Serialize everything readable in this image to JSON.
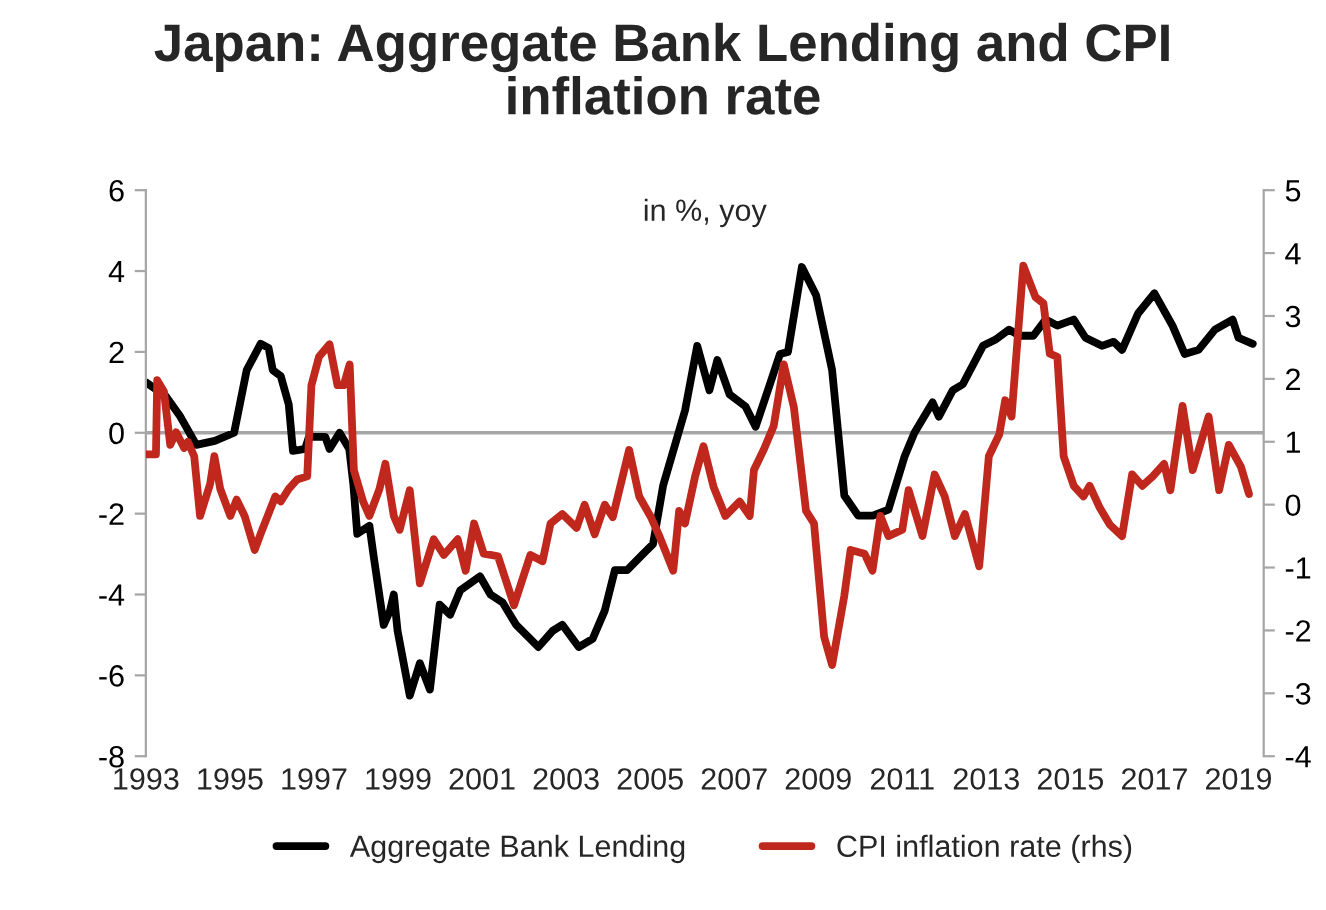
{
  "chart_data": {
    "type": "line",
    "title": "Japan: Aggregate Bank Lending and CPI\ninflation rate",
    "subtitle": "in %, yoy",
    "xlim": [
      1993,
      2019.6
    ],
    "xticks": [
      1993,
      1995,
      1997,
      1999,
      2001,
      2003,
      2005,
      2007,
      2009,
      2011,
      2013,
      2015,
      2017,
      2019
    ],
    "ylim": [
      -8,
      6
    ],
    "yticks": [
      -8,
      -6,
      -4,
      -2,
      0,
      2,
      4,
      6
    ],
    "y2lim": [
      -4,
      5
    ],
    "y2ticks": [
      -4,
      -3,
      -2,
      -1,
      0,
      1,
      2,
      3,
      4,
      5
    ],
    "grid": false,
    "legend": "bottom",
    "line_style": "solid",
    "marker": "none",
    "ref_lines": [
      {
        "axis": "y",
        "value": 0,
        "color": "#a6a6a6"
      }
    ],
    "series": [
      {
        "name": "Aggregate Bank Lending",
        "color": "#000000",
        "x": [
          1993.0,
          1993.48,
          1993.82,
          1994.2,
          1994.64,
          1995.1,
          1995.4,
          1995.73,
          1995.92,
          1996.02,
          1996.21,
          1996.4,
          1996.5,
          1996.79,
          1996.88,
          1997.27,
          1997.37,
          1997.61,
          1997.84,
          1997.94,
          1998.03,
          1998.32,
          1998.42,
          1998.66,
          1998.81,
          1998.9,
          1998.99,
          1999.28,
          1999.52,
          1999.76,
          1999.99,
          2000.24,
          2000.48,
          2000.95,
          2001.2,
          2001.49,
          2001.81,
          2002.34,
          2002.68,
          2002.91,
          2003.3,
          2003.63,
          2003.92,
          2004.16,
          2004.45,
          2004.83,
          2005.07,
          2005.31,
          2005.55,
          2005.83,
          2006.12,
          2006.41,
          2006.6,
          2006.89,
          2007.27,
          2007.51,
          2007.85,
          2008.09,
          2008.28,
          2008.61,
          2008.95,
          2009.33,
          2009.62,
          2009.95,
          2010.3,
          2010.67,
          2011.05,
          2011.29,
          2011.72,
          2011.87,
          2012.2,
          2012.44,
          2012.92,
          2013.21,
          2013.54,
          2013.79,
          2014.12,
          2014.41,
          2014.69,
          2015.08,
          2015.36,
          2015.75,
          2016.03,
          2016.23,
          2016.61,
          2017.0,
          2017.43,
          2017.72,
          2018.05,
          2018.44,
          2018.86,
          2019.0,
          2019.34
        ],
        "values": [
          1.25,
          0.9,
          0.4,
          -0.3,
          -0.2,
          0.0,
          1.55,
          2.2,
          2.1,
          1.55,
          1.4,
          0.7,
          -0.45,
          -0.4,
          -0.1,
          -0.1,
          -0.4,
          0.0,
          -0.4,
          -1.3,
          -2.5,
          -2.3,
          -3.05,
          -4.75,
          -4.4,
          -4.0,
          -4.9,
          -6.5,
          -5.7,
          -6.35,
          -4.25,
          -4.5,
          -3.9,
          -3.55,
          -4.0,
          -4.2,
          -4.75,
          -5.3,
          -4.9,
          -4.75,
          -5.3,
          -5.1,
          -4.4,
          -3.4,
          -3.4,
          -3.0,
          -2.75,
          -1.3,
          -0.45,
          0.55,
          2.15,
          1.05,
          1.8,
          0.95,
          0.65,
          0.15,
          1.2,
          1.95,
          2.0,
          4.1,
          3.4,
          1.55,
          -1.55,
          -2.05,
          -2.05,
          -1.9,
          -0.6,
          0.0,
          0.75,
          0.4,
          1.05,
          1.2,
          2.15,
          2.3,
          2.55,
          2.4,
          2.4,
          2.8,
          2.65,
          2.8,
          2.35,
          2.15,
          2.25,
          2.05,
          2.95,
          3.45,
          2.65,
          1.95,
          2.05,
          2.55,
          2.8,
          2.35,
          2.2
        ]
      },
      {
        "name": "CPI inflation rate (rhs)",
        "color": "#c0281e",
        "axis": "y2",
        "x": [
          1993.0,
          1993.24,
          1993.27,
          1993.43,
          1993.58,
          1993.72,
          1993.91,
          1994.0,
          1994.15,
          1994.29,
          1994.53,
          1994.63,
          1994.77,
          1995.01,
          1995.16,
          1995.35,
          1995.59,
          1995.74,
          1996.08,
          1996.21,
          1996.4,
          1996.6,
          1996.84,
          1996.94,
          1997.12,
          1997.37,
          1997.56,
          1997.71,
          1997.85,
          1997.95,
          1998.17,
          1998.32,
          1998.56,
          1998.7,
          1998.9,
          1999.04,
          1999.28,
          1999.52,
          1999.85,
          2000.09,
          2000.42,
          2000.61,
          2000.81,
          2001.04,
          2001.38,
          2001.76,
          2002.15,
          2002.44,
          2002.63,
          2002.91,
          2003.25,
          2003.44,
          2003.68,
          2003.92,
          2004.11,
          2004.5,
          2004.74,
          2005.02,
          2005.22,
          2005.55,
          2005.69,
          2005.83,
          2006.07,
          2006.27,
          2006.51,
          2006.79,
          2007.13,
          2007.37,
          2007.47,
          2007.7,
          2007.94,
          2008.18,
          2008.42,
          2008.71,
          2008.9,
          2009.14,
          2009.33,
          2009.62,
          2009.77,
          2010.1,
          2010.29,
          2010.48,
          2010.67,
          2011.0,
          2011.15,
          2011.48,
          2011.77,
          2012.01,
          2012.25,
          2012.49,
          2012.83,
          2013.06,
          2013.31,
          2013.45,
          2013.6,
          2013.88,
          2014.17,
          2014.36,
          2014.51,
          2014.69,
          2014.84,
          2015.08,
          2015.31,
          2015.46,
          2015.7,
          2015.94,
          2016.23,
          2016.47,
          2016.71,
          2016.96,
          2017.23,
          2017.38,
          2017.67,
          2017.91,
          2018.29,
          2018.54,
          2018.77,
          2019.06,
          2019.25
        ],
        "values": [
          0.8,
          0.8,
          1.98,
          1.8,
          0.95,
          1.15,
          0.9,
          1.0,
          0.77,
          -0.18,
          0.33,
          0.77,
          0.25,
          -0.18,
          0.08,
          -0.18,
          -0.72,
          -0.45,
          0.13,
          0.05,
          0.25,
          0.4,
          0.45,
          1.9,
          2.35,
          2.55,
          1.9,
          1.9,
          2.23,
          0.55,
          0.05,
          -0.18,
          0.25,
          0.65,
          -0.18,
          -0.4,
          0.23,
          -1.25,
          -0.55,
          -0.8,
          -0.55,
          -1.05,
          -0.3,
          -0.78,
          -0.82,
          -1.6,
          -0.8,
          -0.9,
          -0.3,
          -0.15,
          -0.37,
          0.0,
          -0.47,
          0.0,
          -0.2,
          0.87,
          0.13,
          -0.2,
          -0.5,
          -1.05,
          -0.1,
          -0.3,
          0.45,
          0.93,
          0.28,
          -0.18,
          0.05,
          -0.18,
          0.55,
          0.87,
          1.25,
          2.23,
          1.55,
          -0.1,
          -0.3,
          -2.1,
          -2.55,
          -1.45,
          -0.72,
          -0.78,
          -1.05,
          -0.18,
          -0.5,
          -0.4,
          0.23,
          -0.5,
          0.48,
          0.13,
          -0.5,
          -0.15,
          -0.98,
          0.77,
          1.12,
          1.66,
          1.4,
          3.8,
          3.3,
          3.2,
          2.4,
          2.35,
          0.77,
          0.3,
          0.13,
          0.3,
          -0.05,
          -0.32,
          -0.5,
          0.48,
          0.3,
          0.45,
          0.65,
          0.23,
          1.57,
          0.55,
          1.4,
          0.23,
          0.95,
          0.6,
          0.17
        ]
      }
    ]
  }
}
